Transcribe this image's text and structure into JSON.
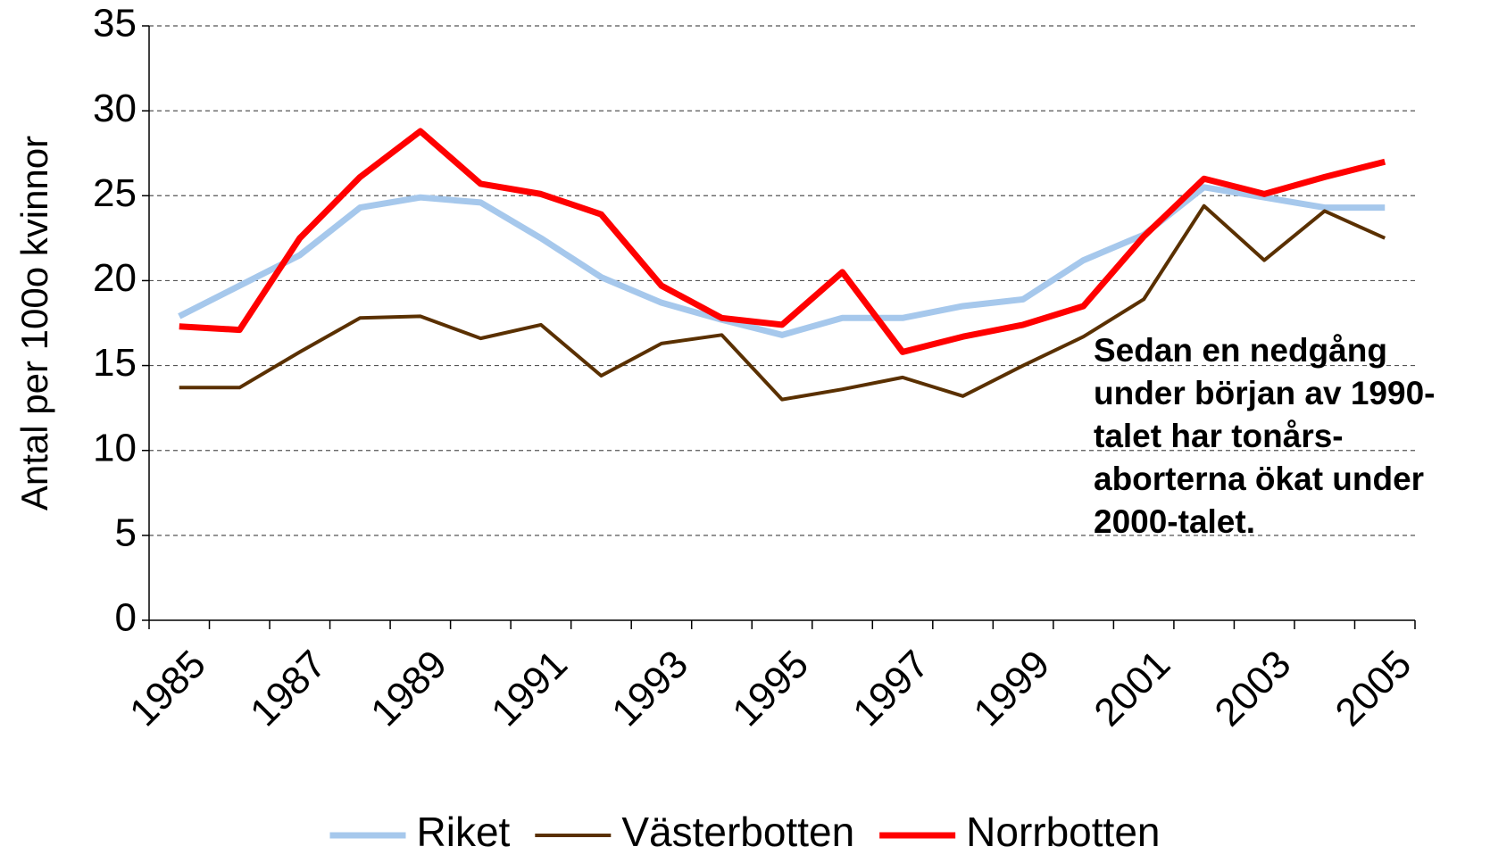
{
  "chart_data": {
    "type": "line",
    "y_label": "Antal per 100o kvinnor",
    "annotation": [
      "Sedan en nedgång",
      "under början av 1990-",
      "talet har  tonårs-",
      "aborterna ökat under",
      "2000-talet."
    ],
    "categories": [
      "1985",
      null,
      "1987",
      null,
      "1989",
      null,
      "1991",
      null,
      "1993",
      null,
      "1995",
      null,
      "1997",
      null,
      "1999",
      null,
      "2001",
      null,
      "2003",
      null,
      "2005"
    ],
    "series": [
      {
        "name": "Riket",
        "color": "#a6c8ec",
        "values": [
          17.9,
          19.7,
          21.5,
          24.3,
          24.9,
          24.6,
          22.5,
          20.2,
          18.7,
          17.7,
          16.8,
          17.8,
          17.8,
          18.5,
          18.9,
          21.2,
          22.7,
          25.5,
          24.9,
          24.3,
          24.3
        ]
      },
      {
        "name": "Västerbotten",
        "color": "#5a3000",
        "values": [
          13.7,
          13.7,
          15.8,
          17.8,
          17.9,
          16.6,
          17.4,
          14.4,
          16.3,
          16.8,
          13.0,
          13.6,
          14.3,
          13.2,
          15.0,
          16.7,
          18.9,
          24.4,
          21.2,
          24.1,
          22.5
        ]
      },
      {
        "name": "Norrbotten",
        "color": "#ff0000",
        "values": [
          17.3,
          17.1,
          22.5,
          26.1,
          28.8,
          25.7,
          25.1,
          23.9,
          19.7,
          17.8,
          17.4,
          20.5,
          15.8,
          16.7,
          17.4,
          18.5,
          22.6,
          26.0,
          25.1,
          26.1,
          27.0
        ]
      }
    ],
    "ylim": [
      0,
      35
    ],
    "yticks": [
      0,
      5,
      10,
      15,
      20,
      25,
      30,
      35
    ],
    "grid": true,
    "legend": "bottom"
  }
}
